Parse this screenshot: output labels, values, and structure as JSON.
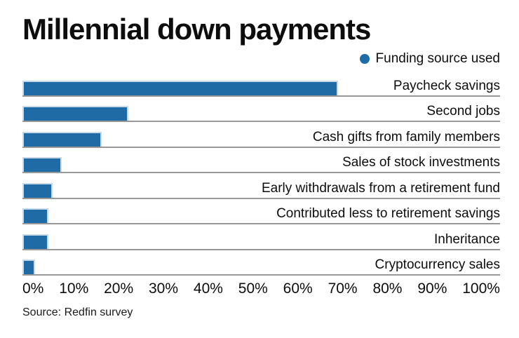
{
  "header": {
    "title": "Millennial down payments"
  },
  "legend": {
    "label": "Funding source used",
    "marker_color": "#1e6ba6"
  },
  "footer": {
    "source": "Source: Redfin survey"
  },
  "chart_data": {
    "type": "bar",
    "orientation": "horizontal",
    "title": "Millennial down payments",
    "series_name": "Funding source used",
    "categories": [
      "Paycheck savings",
      "Second jobs",
      "Cash gifts from family members",
      "Sales of stock investments",
      "Early withdrawals from a retirement fund",
      "Contributed less to retirement savings",
      "Inheritance",
      "Cryptocurrency sales"
    ],
    "values": [
      70,
      23,
      17,
      8,
      6,
      5,
      5,
      2
    ],
    "unit": "%",
    "xlabel": "",
    "ylabel": "",
    "xlim": [
      0,
      100
    ],
    "x_ticks": [
      "0%",
      "10%",
      "20%",
      "30%",
      "40%",
      "50%",
      "60%",
      "70%",
      "80%",
      "90%",
      "100%"
    ],
    "grid": false,
    "legend_position": "top-right",
    "bar_color": "#1e6ba6",
    "bar_border_color": "#c9d9e8",
    "baseline_color": "#989898",
    "source": "Source: Redfin survey"
  }
}
